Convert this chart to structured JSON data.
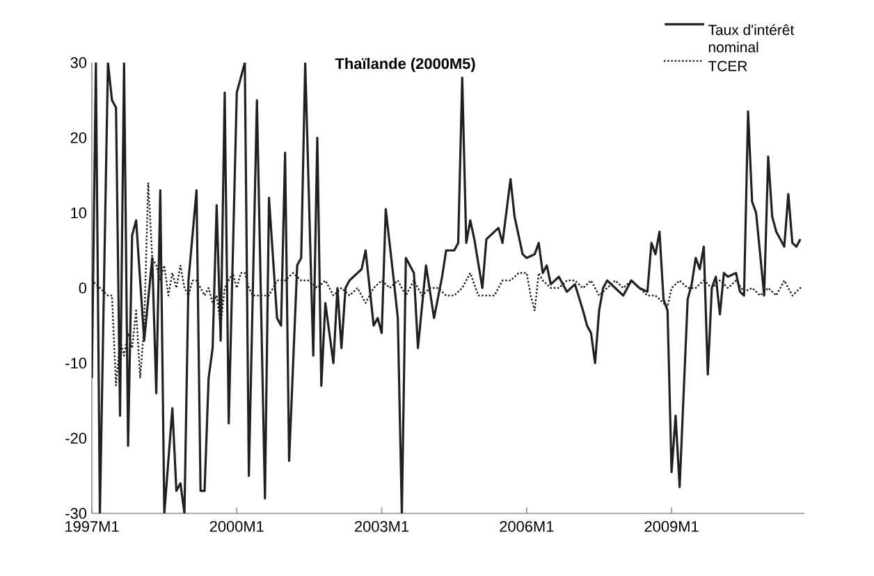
{
  "chart_data": {
    "type": "line",
    "title": "Thaïlande (2000M5)",
    "xlim": [
      "1997-01",
      "2011-10"
    ],
    "xticks": [
      {
        "value": "1997-01",
        "label": "1997M1"
      },
      {
        "value": "2000-01",
        "label": "2000M1"
      },
      {
        "value": "2003-01",
        "label": "2003M1"
      },
      {
        "value": "2006-01",
        "label": "2006M1"
      },
      {
        "value": "2009-01",
        "label": "2009M1"
      }
    ],
    "ylim": [
      -30,
      30
    ],
    "yticks": [
      -30,
      -20,
      -10,
      0,
      10,
      20,
      30
    ],
    "legend": "top right",
    "series": [
      {
        "name": "Taux d'intérêt nominal",
        "color": "#231f20",
        "line_style": "solid",
        "x": [
          "1997-01",
          "1997-02",
          "1997-03",
          "1997-05",
          "1997-06",
          "1997-07",
          "1997-08",
          "1997-09",
          "1997-10",
          "1997-11",
          "1997-12",
          "1998-02",
          "1998-04",
          "1998-05",
          "1998-06",
          "1998-07",
          "1998-09",
          "1998-10",
          "1998-11",
          "1998-12",
          "1999-01",
          "1999-03",
          "1999-04",
          "1999-05",
          "1999-06",
          "1999-07",
          "1999-08",
          "1999-09",
          "1999-10",
          "1999-11",
          "2000-01",
          "2000-03",
          "2000-04",
          "2000-06",
          "2000-08",
          "2000-09",
          "2000-11",
          "2000-12",
          "2001-01",
          "2001-02",
          "2001-04",
          "2001-05",
          "2001-06",
          "2001-08",
          "2001-09",
          "2001-10",
          "2001-11",
          "2002-01",
          "2002-02",
          "2002-03",
          "2002-04",
          "2002-05",
          "2002-07",
          "2002-08",
          "2002-09",
          "2002-10",
          "2002-11",
          "2002-12",
          "2003-01",
          "2003-02",
          "2003-04",
          "2003-05",
          "2003-06",
          "2003-07",
          "2003-09",
          "2003-10",
          "2003-12",
          "2004-02",
          "2004-04",
          "2004-05",
          "2004-07",
          "2004-08",
          "2004-09",
          "2004-10",
          "2004-11",
          "2004-12",
          "2005-02",
          "2005-03",
          "2005-06",
          "2005-07",
          "2005-09",
          "2005-10",
          "2005-12",
          "2006-01",
          "2006-03",
          "2006-04",
          "2006-05",
          "2006-06",
          "2006-07",
          "2006-09",
          "2006-11",
          "2007-01",
          "2007-03",
          "2007-04",
          "2007-05",
          "2007-06",
          "2007-07",
          "2007-08",
          "2007-09",
          "2007-11",
          "2008-01",
          "2008-03",
          "2008-05",
          "2008-07",
          "2008-08",
          "2008-09",
          "2008-10",
          "2008-11",
          "2008-12",
          "2009-01",
          "2009-02",
          "2009-03",
          "2009-05",
          "2009-06",
          "2009-07",
          "2009-08",
          "2009-09",
          "2009-10",
          "2009-11",
          "2009-12",
          "2010-01",
          "2010-02",
          "2010-03",
          "2010-05",
          "2010-06",
          "2010-07",
          "2010-08",
          "2010-09",
          "2010-10",
          "2010-12",
          "2011-01",
          "2011-02",
          "2011-03",
          "2011-05",
          "2011-06",
          "2011-07",
          "2011-08",
          "2011-09"
        ],
        "values": [
          -12,
          30,
          -30,
          30,
          25,
          24,
          -17,
          30,
          -21,
          7,
          9,
          -7,
          4,
          -14,
          13,
          -30,
          -16,
          -27,
          -26,
          -30,
          1,
          13,
          -27,
          -27,
          -12,
          -8,
          11,
          -7,
          26,
          -18,
          26,
          30,
          -25,
          25,
          -28,
          12,
          -4,
          -5,
          18,
          -23,
          3,
          4,
          30,
          -9,
          20,
          -13,
          -2,
          -10,
          0,
          -8,
          0,
          1,
          2,
          2.5,
          5,
          0,
          -5,
          -4,
          -6,
          10.5,
          1,
          -4,
          -30,
          4,
          2,
          -8,
          3,
          -4,
          1.5,
          5,
          5,
          6,
          28,
          6,
          9,
          6.5,
          0,
          6.5,
          8,
          6,
          14.5,
          9.5,
          4.5,
          4,
          4.5,
          6,
          2,
          3,
          0.5,
          1.5,
          -0.5,
          0.5,
          -3,
          -5,
          -6,
          -10,
          -3,
          0,
          1,
          0,
          -1,
          1,
          0,
          -0.5,
          6,
          4.5,
          7.5,
          -1.5,
          -3,
          -24.5,
          -17,
          -26.5,
          -1.5,
          0.5,
          4,
          2.5,
          5.5,
          -11.5,
          0,
          1.5,
          -3.5,
          2,
          1.5,
          2,
          -0.5,
          -1,
          23.5,
          11.5,
          10,
          -1,
          17.5,
          9.5,
          7.5,
          5.5,
          12.5,
          6,
          5.5,
          6.5
        ]
      },
      {
        "name": "TCER",
        "color": "#231f20",
        "line_style": "dotted",
        "x": [
          "1997-01",
          "1997-03",
          "1997-05",
          "1997-06",
          "1997-07",
          "1997-08",
          "1997-09",
          "1997-10",
          "1997-11",
          "1997-12",
          "1998-01",
          "1998-02",
          "1998-03",
          "1998-04",
          "1998-05",
          "1998-06",
          "1998-07",
          "1998-08",
          "1998-09",
          "1998-10",
          "1998-11",
          "1998-12",
          "1999-01",
          "1999-02",
          "1999-03",
          "1999-04",
          "1999-05",
          "1999-06",
          "1999-07",
          "1999-08",
          "1999-09",
          "1999-10",
          "1999-11",
          "1999-12",
          "2000-01",
          "2000-02",
          "2000-03",
          "2000-04",
          "2000-05",
          "2000-07",
          "2000-09",
          "2000-11",
          "2001-01",
          "2001-03",
          "2001-05",
          "2001-07",
          "2001-09",
          "2001-11",
          "2002-01",
          "2002-03",
          "2002-05",
          "2002-07",
          "2002-09",
          "2002-11",
          "2003-01",
          "2003-03",
          "2003-05",
          "2003-07",
          "2003-09",
          "2003-11",
          "2004-01",
          "2004-03",
          "2004-05",
          "2004-07",
          "2004-09",
          "2004-11",
          "2005-01",
          "2005-03",
          "2005-05",
          "2005-07",
          "2005-09",
          "2005-11",
          "2006-01",
          "2006-02",
          "2006-03",
          "2006-04",
          "2006-05",
          "2006-07",
          "2006-09",
          "2006-11",
          "2007-01",
          "2007-03",
          "2007-05",
          "2007-07",
          "2007-09",
          "2007-11",
          "2008-01",
          "2008-03",
          "2008-05",
          "2008-07",
          "2008-09",
          "2008-11",
          "2008-12",
          "2009-01",
          "2009-03",
          "2009-05",
          "2009-07",
          "2009-09",
          "2009-11",
          "2010-01",
          "2010-03",
          "2010-05",
          "2010-07",
          "2010-09",
          "2010-11",
          "2011-01",
          "2011-03",
          "2011-05",
          "2011-07",
          "2011-09"
        ],
        "values": [
          1,
          0,
          -1,
          -1,
          -13,
          -7,
          -9,
          -6,
          -8,
          -3,
          -12,
          -5,
          14,
          4,
          3,
          1,
          3,
          -1,
          2,
          0,
          3,
          0,
          -1,
          1,
          1,
          0,
          -1,
          0,
          -2,
          -1,
          -5,
          0,
          1,
          2,
          0,
          2,
          2,
          0,
          -1,
          -1,
          -1,
          1,
          1,
          2,
          1,
          1,
          0,
          1,
          -1,
          0,
          -1,
          0,
          -2,
          0,
          1,
          0,
          1,
          -1,
          1,
          -1,
          0,
          0,
          -1,
          -1,
          0,
          2,
          -1,
          -1,
          -1,
          1,
          1,
          2,
          2,
          -1,
          -3,
          2,
          1,
          0,
          0,
          1,
          1,
          0,
          1,
          -1,
          0,
          1,
          0,
          1,
          0,
          -1,
          -1,
          -2,
          -2.5,
          0,
          1,
          0,
          0,
          1,
          0,
          1,
          0,
          1,
          -0.5,
          0,
          -1,
          0,
          -1,
          1,
          -1,
          0
        ]
      }
    ]
  }
}
